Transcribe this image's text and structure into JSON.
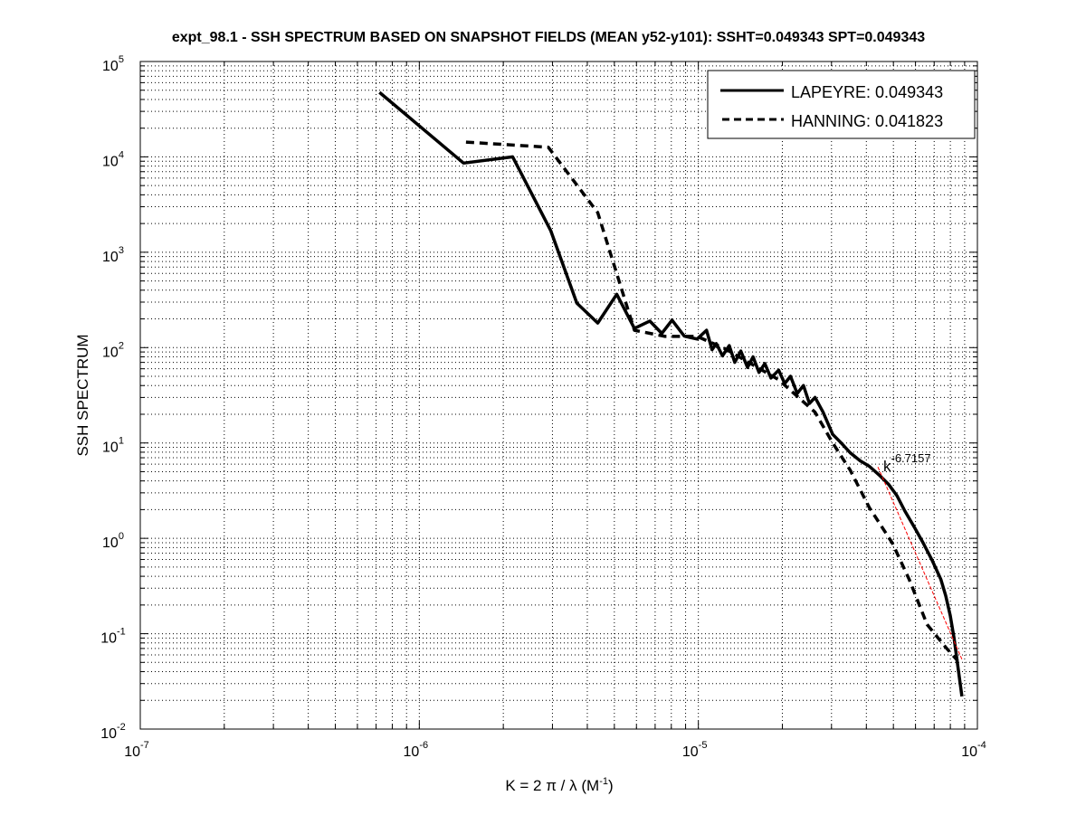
{
  "chart_data": {
    "type": "line",
    "title": "expt_98.1 - SSH SPECTRUM BASED ON SNAPSHOT FIELDS (MEAN y52-y101): SSHT=0.049343 SPT=0.049343",
    "xlabel_main": "K = 2 π / λ  (M",
    "xlabel_sup": "-1",
    "xlabel_end": ")",
    "ylabel": "SSH SPECTRUM",
    "xscale": "log",
    "yscale": "log",
    "xlim": [
      1e-07,
      0.0001
    ],
    "ylim": [
      0.01,
      100000.0
    ],
    "grid": true,
    "x_ticks": [
      {
        "base": "10",
        "exp": "-7"
      },
      {
        "base": "10",
        "exp": "-6"
      },
      {
        "base": "10",
        "exp": "-5"
      },
      {
        "base": "10",
        "exp": "-4"
      }
    ],
    "y_ticks": [
      {
        "base": "10",
        "exp": "-2"
      },
      {
        "base": "10",
        "exp": "-1"
      },
      {
        "base": "10",
        "exp": "0"
      },
      {
        "base": "10",
        "exp": "1"
      },
      {
        "base": "10",
        "exp": "2"
      },
      {
        "base": "10",
        "exp": "3"
      },
      {
        "base": "10",
        "exp": "4"
      },
      {
        "base": "10",
        "exp": "5"
      }
    ],
    "legend_position": "top-right",
    "series": [
      {
        "name": "LAPEYRE: 0.049343",
        "style": "solid",
        "color": "#000000",
        "x": [
          7.2e-07,
          1.44e-06,
          2.16e-06,
          2.96e-06,
          3.67e-06,
          4.36e-06,
          5.1e-06,
          5.9e-06,
          6.7e-06,
          7.4e-06,
          8.05e-06,
          8.9e-06,
          9.9e-06,
          1.07e-05,
          1.12e-05,
          1.16e-05,
          1.22e-05,
          1.29e-05,
          1.35e-05,
          1.42e-05,
          1.5e-05,
          1.57e-05,
          1.65e-05,
          1.73e-05,
          1.82e-05,
          1.94e-05,
          2.04e-05,
          2.14e-05,
          2.26e-05,
          2.38e-05,
          2.5e-05,
          2.62e-05,
          2.8e-05,
          3.03e-05,
          3.25e-05,
          3.5e-05,
          3.8e-05,
          4.1e-05,
          4.45e-05,
          4.8e-05,
          5.15e-05,
          5.5e-05,
          5.95e-05,
          6.4e-05,
          6.9e-05,
          7.4e-05,
          7.7e-05,
          7.99e-05,
          8.25e-05,
          8.5e-05,
          8.8e-05
        ],
        "y": [
          47500,
          8600,
          10000,
          1680,
          293,
          181,
          363,
          159,
          190,
          141,
          194,
          132,
          123,
          152,
          95,
          110,
          82,
          105,
          70,
          92,
          62,
          80,
          55,
          68,
          48,
          58,
          42,
          50,
          33,
          40,
          26,
          30,
          21,
          12.3,
          10,
          7.9,
          6.5,
          5.7,
          4.6,
          3.7,
          2.8,
          1.93,
          1.3,
          0.89,
          0.58,
          0.37,
          0.25,
          0.155,
          0.09,
          0.047,
          0.022
        ]
      },
      {
        "name": "HANNING: 0.041823",
        "style": "dashed",
        "color": "#000000",
        "x": [
          1.47e-06,
          2.9e-06,
          4.36e-06,
          5.9e-06,
          7.6e-06,
          9.9e-06,
          1.24e-05,
          1.94e-05,
          2.62e-05,
          3.03e-05,
          3.5e-05,
          4.1e-05,
          4.96e-05,
          5.7e-05,
          6.6e-05,
          7.7e-05,
          8.5e-05
        ],
        "y": [
          14300,
          12600,
          2600,
          152,
          131,
          131,
          98,
          46,
          21,
          10,
          5.2,
          2.1,
          0.89,
          0.37,
          0.125,
          0.072,
          0.052
        ]
      }
    ],
    "fit_line": {
      "x": [
        4.4e-05,
        8.8e-05
      ],
      "y": [
        5.6,
        0.054
      ],
      "color": "#ff0000",
      "exponent": "-6.7157",
      "base_label": "k"
    }
  }
}
